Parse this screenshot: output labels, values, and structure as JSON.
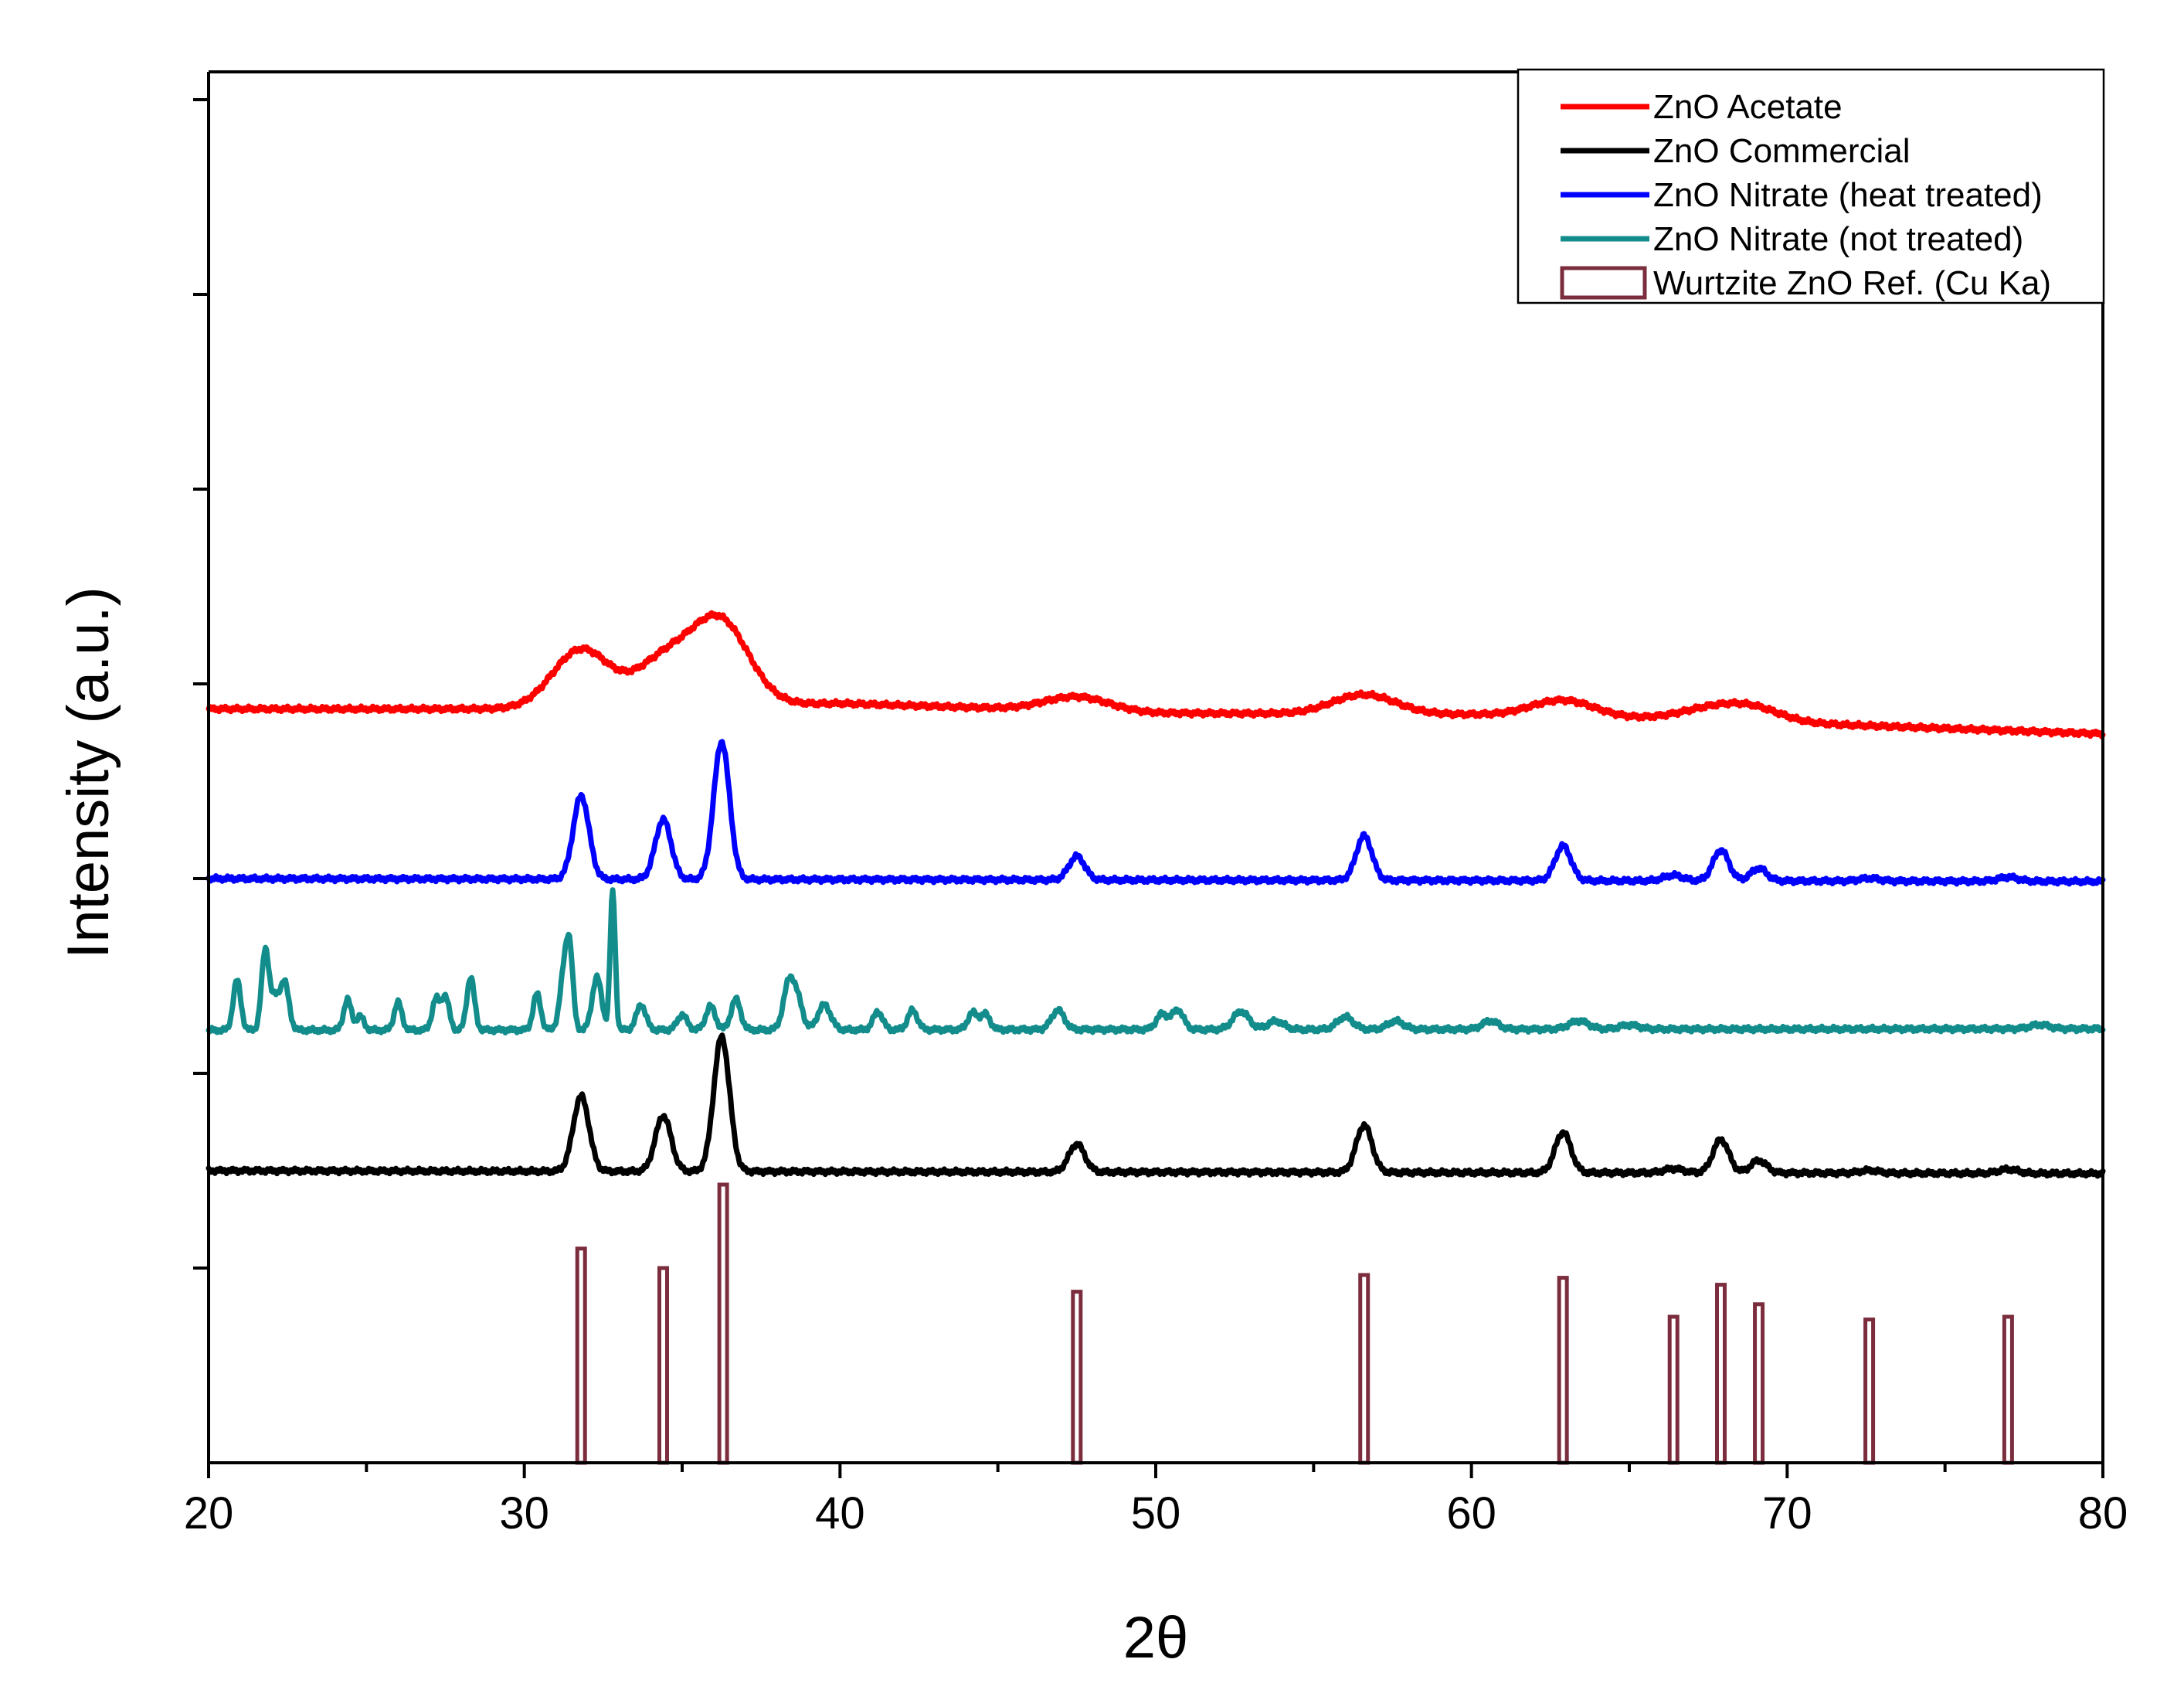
{
  "chart_data": {
    "type": "line",
    "xlabel": "2θ",
    "ylabel": "Intensity (a.u.)",
    "xlim": [
      20,
      80
    ],
    "ylim": [
      0,
      100
    ],
    "x_ticks": [
      20,
      30,
      40,
      50,
      60,
      70,
      80
    ],
    "x_tick_labels": [
      "20",
      "30",
      "40",
      "50",
      "60",
      "70",
      "80"
    ],
    "y_tick_labels_shown": false,
    "legend_position": "top-right",
    "series": [
      {
        "name": "ZnO Acetate",
        "color": "#ff0000",
        "baseline": [
          [
            20,
            54.2
          ],
          [
            30,
            54.2
          ],
          [
            40,
            54.6
          ],
          [
            50,
            53.9
          ],
          [
            60,
            53.8
          ],
          [
            70,
            53.2
          ],
          [
            80,
            52.4
          ]
        ],
        "peaks": [
          [
            31.8,
            4.2,
            0.9
          ],
          [
            34.4,
            3.2,
            0.9
          ],
          [
            36.2,
            6.0,
            0.9
          ],
          [
            47.5,
            1.0,
            1.0
          ],
          [
            56.6,
            1.4,
            1.0
          ],
          [
            62.9,
            1.2,
            1.0
          ],
          [
            68.0,
            1.1,
            1.2
          ],
          [
            69.1,
            0.4,
            0.8
          ]
        ]
      },
      {
        "name": "ZnO Commercial",
        "color": "#000000",
        "baseline": [
          [
            20,
            21.0
          ],
          [
            80,
            20.8
          ]
        ],
        "peaks": [
          [
            31.8,
            5.4,
            0.25
          ],
          [
            34.4,
            4.0,
            0.25
          ],
          [
            36.25,
            9.7,
            0.25
          ],
          [
            47.5,
            2.0,
            0.25
          ],
          [
            56.6,
            3.4,
            0.25
          ],
          [
            62.9,
            2.9,
            0.25
          ],
          [
            66.4,
            0.3,
            0.3
          ],
          [
            67.9,
            2.4,
            0.25
          ],
          [
            69.1,
            0.9,
            0.25
          ],
          [
            72.6,
            0.2,
            0.3
          ],
          [
            77.0,
            0.3,
            0.3
          ]
        ]
      },
      {
        "name": "ZnO Nitrate (heat treated)",
        "color": "#0000ff",
        "baseline": [
          [
            20,
            42.0
          ],
          [
            80,
            41.8
          ]
        ],
        "peaks": [
          [
            31.8,
            6.0,
            0.25
          ],
          [
            34.4,
            4.3,
            0.25
          ],
          [
            36.25,
            9.9,
            0.25
          ],
          [
            47.5,
            1.7,
            0.25
          ],
          [
            56.6,
            3.2,
            0.25
          ],
          [
            62.9,
            2.5,
            0.25
          ],
          [
            66.4,
            0.4,
            0.3
          ],
          [
            67.9,
            2.2,
            0.25
          ],
          [
            69.1,
            0.9,
            0.25
          ],
          [
            72.6,
            0.2,
            0.3
          ],
          [
            77.0,
            0.3,
            0.3
          ]
        ]
      },
      {
        "name": "ZnO Nitrate (not treated)",
        "color": "#138c8c",
        "baseline": [
          [
            20,
            31.1
          ],
          [
            80,
            31.2
          ]
        ],
        "peaks": [
          [
            20.9,
            3.6,
            0.12
          ],
          [
            21.8,
            5.8,
            0.12
          ],
          [
            22.1,
            2.0,
            0.12
          ],
          [
            22.4,
            3.5,
            0.14
          ],
          [
            24.4,
            2.2,
            0.12
          ],
          [
            24.8,
            1.0,
            0.12
          ],
          [
            26.0,
            2.0,
            0.12
          ],
          [
            27.2,
            2.2,
            0.12
          ],
          [
            27.5,
            2.4,
            0.12
          ],
          [
            28.3,
            3.8,
            0.12
          ],
          [
            30.4,
            2.6,
            0.12
          ],
          [
            31.3,
            4.8,
            0.15
          ],
          [
            31.45,
            3.5,
            0.1
          ],
          [
            32.3,
            3.8,
            0.15
          ],
          [
            32.8,
            9.9,
            0.08
          ],
          [
            33.7,
            1.8,
            0.15
          ],
          [
            35.0,
            1.1,
            0.15
          ],
          [
            35.9,
            1.7,
            0.15
          ],
          [
            36.7,
            2.2,
            0.15
          ],
          [
            38.4,
            3.6,
            0.18
          ],
          [
            38.7,
            1.5,
            0.15
          ],
          [
            39.5,
            1.8,
            0.2
          ],
          [
            41.2,
            1.3,
            0.15
          ],
          [
            42.3,
            1.4,
            0.15
          ],
          [
            44.2,
            1.2,
            0.15
          ],
          [
            44.6,
            1.1,
            0.15
          ],
          [
            46.9,
            1.4,
            0.2
          ],
          [
            50.2,
            1.1,
            0.18
          ],
          [
            50.7,
            1.4,
            0.18
          ],
          [
            52.7,
            1.3,
            0.25
          ],
          [
            53.8,
            0.6,
            0.25
          ],
          [
            56.0,
            0.9,
            0.25
          ],
          [
            57.6,
            0.6,
            0.25
          ],
          [
            60.6,
            0.6,
            0.25
          ],
          [
            63.4,
            0.6,
            0.3
          ],
          [
            65.0,
            0.3,
            0.3
          ],
          [
            78.0,
            0.3,
            0.3
          ]
        ]
      }
    ],
    "reference": {
      "name": "Wurtzite ZnO Ref. (Cu Ka)",
      "color": "#7b2d3e",
      "positions": [
        31.8,
        34.4,
        36.3,
        47.5,
        56.6,
        62.9,
        66.4,
        67.9,
        69.1,
        72.6,
        77.0
      ],
      "intensities": [
        15.4,
        14.0,
        20.0,
        12.3,
        13.5,
        13.3,
        10.5,
        12.8,
        11.4,
        10.3,
        10.5
      ]
    }
  }
}
